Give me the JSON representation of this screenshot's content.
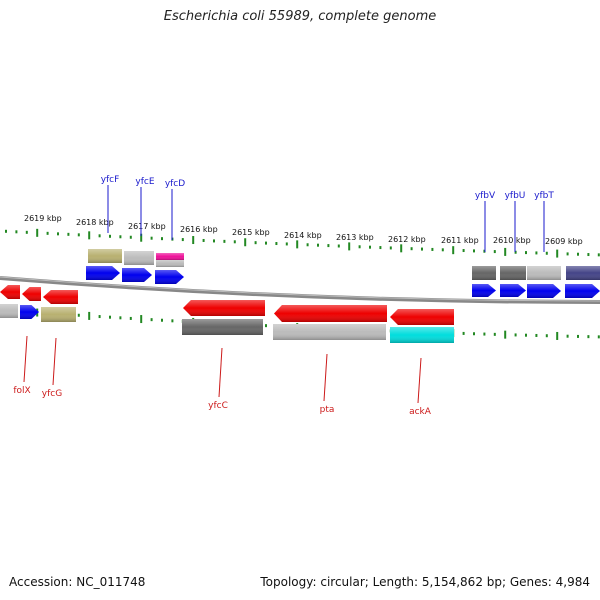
{
  "title": "Escherichia coli 55989, complete genome",
  "footer": {
    "accession": "Accession: NC_011748",
    "summary": "Topology: circular; Length: 5,154,862 bp; Genes: 4,984"
  },
  "colors": {
    "forward": "#0000ee",
    "reverse": "#ee0000",
    "olive": "#b8b070",
    "grey": "#bbbbbb",
    "darkgrey": "#666666",
    "magenta": "#ee1199",
    "cyan": "#00dddd",
    "navy": "#444488",
    "tick": "#228822",
    "label_top": "#1a1acc",
    "label_bottom": "#cc1a1a"
  },
  "kbp_labels": [
    {
      "text": "2619 kbp",
      "kb": 2619
    },
    {
      "text": "2618 kbp",
      "kb": 2618
    },
    {
      "text": "2617 kbp",
      "kb": 2617
    },
    {
      "text": "2616 kbp",
      "kb": 2616
    },
    {
      "text": "2615 kbp",
      "kb": 2615
    },
    {
      "text": "2614 kbp",
      "kb": 2614
    },
    {
      "text": "2613 kbp",
      "kb": 2613
    },
    {
      "text": "2612 kbp",
      "kb": 2612
    },
    {
      "text": "2611 kbp",
      "kb": 2611
    },
    {
      "text": "2610 kbp",
      "kb": 2610
    },
    {
      "text": "2609 kbp",
      "kb": 2609
    }
  ],
  "top_genes": [
    {
      "name": "yfcF"
    },
    {
      "name": "yfcE"
    },
    {
      "name": "yfcD"
    },
    {
      "name": "yfbV"
    },
    {
      "name": "yfbU"
    },
    {
      "name": "yfbT"
    }
  ],
  "bottom_genes": [
    {
      "name": "folX"
    },
    {
      "name": "yfcG"
    },
    {
      "name": "yfcC"
    },
    {
      "name": "pta"
    },
    {
      "name": "ackA"
    }
  ]
}
